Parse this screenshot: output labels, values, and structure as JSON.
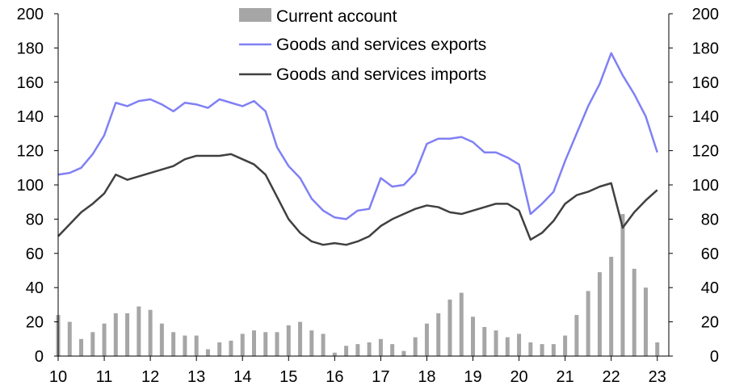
{
  "chart_data": {
    "type": "bar+line",
    "title": "",
    "x_tick_labels": [
      "10",
      "11",
      "12",
      "13",
      "14",
      "15",
      "16",
      "17",
      "18",
      "19",
      "20",
      "21",
      "22",
      "23"
    ],
    "xlim": [
      2010.0,
      2023.25
    ],
    "ylim": [
      0,
      200
    ],
    "y_ticks": [
      "0",
      "20",
      "40",
      "60",
      "80",
      "100",
      "120",
      "140",
      "160",
      "180",
      "200"
    ],
    "grid": false,
    "legend_position": "top-center",
    "x": [
      2010.0,
      2010.25,
      2010.5,
      2010.75,
      2011.0,
      2011.25,
      2011.5,
      2011.75,
      2012.0,
      2012.25,
      2012.5,
      2012.75,
      2013.0,
      2013.25,
      2013.5,
      2013.75,
      2014.0,
      2014.25,
      2014.5,
      2014.75,
      2015.0,
      2015.25,
      2015.5,
      2015.75,
      2016.0,
      2016.25,
      2016.5,
      2016.75,
      2017.0,
      2017.25,
      2017.5,
      2017.75,
      2018.0,
      2018.25,
      2018.5,
      2018.75,
      2019.0,
      2019.25,
      2019.5,
      2019.75,
      2020.0,
      2020.25,
      2020.5,
      2020.75,
      2021.0,
      2021.25,
      2021.5,
      2021.75,
      2022.0,
      2022.25,
      2022.5,
      2022.75,
      2023.0
    ],
    "series": [
      {
        "name": "Current account",
        "kind": "bar",
        "color": "#a6a6a6",
        "values": [
          24,
          20,
          10,
          14,
          19,
          25,
          25,
          29,
          27,
          19,
          14,
          12,
          12,
          4,
          8,
          9,
          13,
          15,
          14,
          14,
          18,
          20,
          15,
          13,
          2,
          6,
          7,
          8,
          10,
          7,
          3,
          11,
          19,
          25,
          33,
          37,
          23,
          17,
          15,
          11,
          13,
          8,
          7,
          7,
          12,
          24,
          38,
          49,
          58,
          83,
          51,
          40,
          8
        ]
      },
      {
        "name": "Goods and services exports",
        "kind": "line",
        "color": "#8080f5",
        "values": [
          106,
          107,
          110,
          118,
          129,
          148,
          146,
          149,
          150,
          147,
          143,
          148,
          147,
          145,
          150,
          148,
          146,
          149,
          143,
          122,
          111,
          104,
          92,
          85,
          81,
          80,
          85,
          86,
          104,
          99,
          100,
          107,
          124,
          127,
          127,
          128,
          125,
          119,
          119,
          116,
          112,
          83,
          89,
          96,
          114,
          130,
          146,
          159,
          177,
          164,
          153,
          140,
          119
        ]
      },
      {
        "name": "Goods and services imports",
        "kind": "line",
        "color": "#404040",
        "values": [
          70,
          77,
          84,
          89,
          95,
          106,
          103,
          105,
          107,
          109,
          111,
          115,
          117,
          117,
          117,
          118,
          115,
          112,
          106,
          93,
          80,
          72,
          67,
          65,
          66,
          65,
          67,
          70,
          76,
          80,
          83,
          86,
          88,
          87,
          84,
          83,
          85,
          87,
          89,
          89,
          85,
          68,
          72,
          79,
          89,
          94,
          96,
          99,
          101,
          75,
          84,
          91,
          97
        ]
      }
    ]
  }
}
